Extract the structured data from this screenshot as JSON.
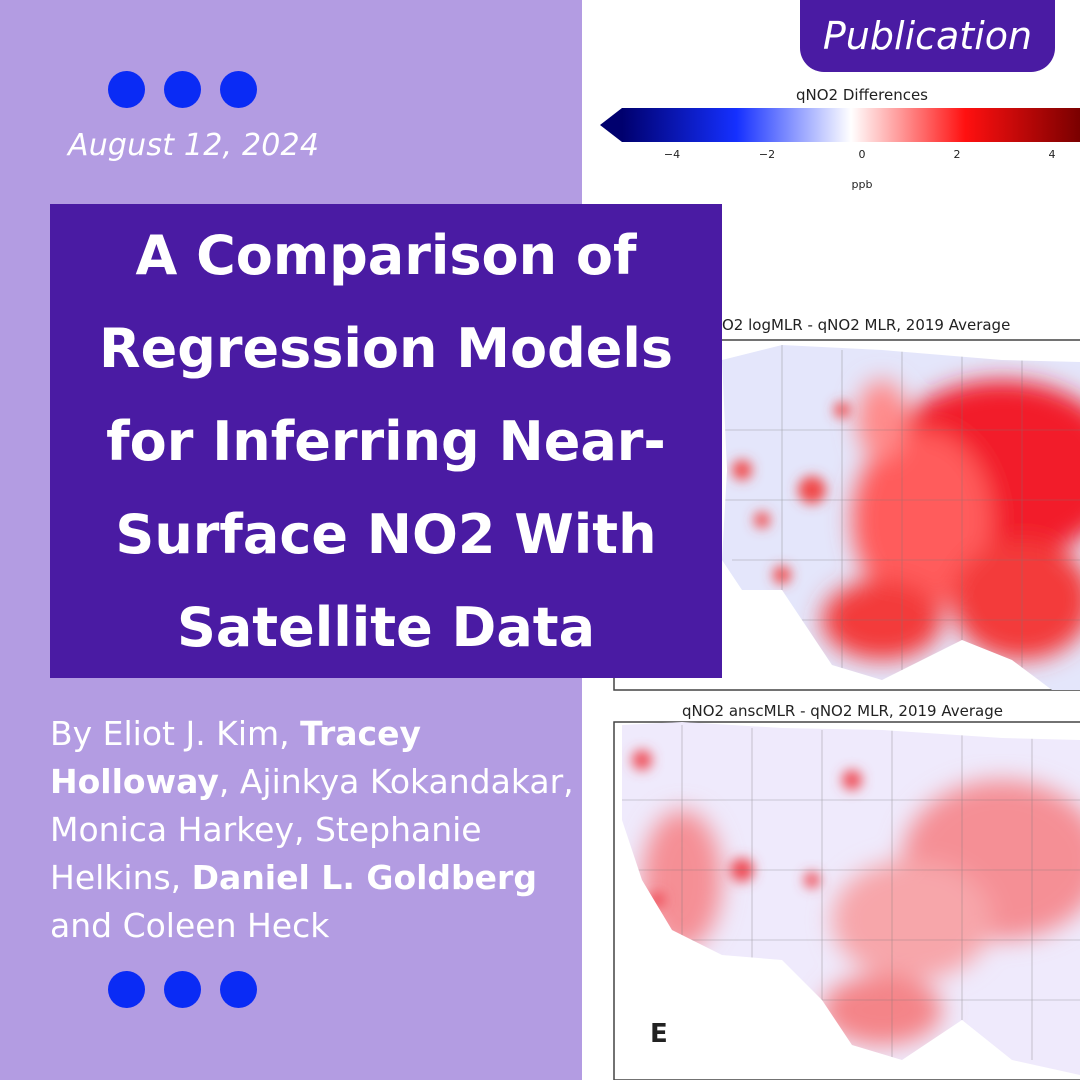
{
  "date": "August 12, 2024",
  "title": "A Comparison of Regression Models for Inferring Near-Surface NO2 With Satellite Data",
  "authors": [
    {
      "text": "By Eliot J. Kim, ",
      "bold": false
    },
    {
      "text": "Tracey Holloway",
      "bold": true
    },
    {
      "text": ", Ajinkya Kokandakar, Monica Harkey, Stephanie Helkins, ",
      "bold": false
    },
    {
      "text": "Daniel L. Goldberg",
      "bold": true
    },
    {
      "text": " and Coleen Heck",
      "bold": false
    }
  ],
  "badge": "Publication",
  "figure": {
    "colorbar_title": "qNO2 Differences",
    "colorbar_ticks": [
      "−4",
      "−2",
      "0",
      "2",
      "4"
    ],
    "colorbar_unit": "ppb",
    "map1_title": "O2 logMLR - qNO2 MLR, 2019 Average",
    "map2_title": "qNO2 anscMLR - qNO2 MLR, 2019 Average",
    "panel_label": "E"
  },
  "colors": {
    "background": "#b39ce2",
    "title_box": "#4a1ba3",
    "dots": "#0a2bf5",
    "badge": "#4a1ba3"
  }
}
